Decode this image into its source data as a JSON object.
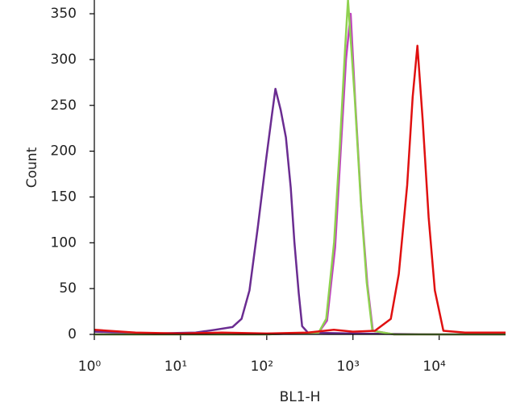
{
  "chart_data": {
    "type": "line",
    "x_label": "BL1-H",
    "y_label": "Count",
    "xscale": "log",
    "xlim": [
      1,
      58900
    ],
    "ylim": [
      0,
      365
    ],
    "xticks": [
      {
        "value": 1,
        "label": "10⁰"
      },
      {
        "value": 10,
        "label": "10¹"
      },
      {
        "value": 100,
        "label": "10²"
      },
      {
        "value": 1000,
        "label": "10³"
      },
      {
        "value": 10000,
        "label": "10⁴"
      }
    ],
    "yticks": [
      0,
      50,
      100,
      150,
      200,
      250,
      300,
      350
    ],
    "series": [
      {
        "color": "#6a2c91",
        "x": [
          1,
          5,
          15,
          25,
          40,
          51,
          63,
          79,
          98,
          115,
          126,
          145,
          167,
          190,
          209,
          235,
          257,
          300,
          1000,
          10000,
          58900
        ],
        "values": [
          3,
          1,
          2,
          5,
          8,
          17,
          48,
          118,
          190,
          240,
          268,
          245,
          215,
          160,
          101,
          45,
          9,
          2,
          1,
          0,
          0
        ]
      },
      {
        "color": "#c040c0",
        "x": [
          1,
          100,
          400,
          500,
          620,
          720,
          830,
          940,
          1060,
          1250,
          1470,
          1700,
          3000,
          58900
        ],
        "values": [
          0,
          0,
          2,
          15,
          95,
          200,
          300,
          350,
          255,
          140,
          55,
          4,
          0,
          0
        ]
      },
      {
        "color": "#8fd14f",
        "x": [
          1,
          100,
          400,
          490,
          605,
          707,
          810,
          876,
          1047,
          1235,
          1445,
          1680,
          3000,
          58900
        ],
        "values": [
          0,
          0,
          2,
          17,
          101,
          207,
          312,
          365,
          259,
          145,
          57,
          4,
          0,
          0
        ]
      },
      {
        "color": "#e01010",
        "x": [
          1,
          3,
          10,
          30,
          100,
          300,
          600,
          1000,
          1800,
          2750,
          3400,
          4260,
          4930,
          5600,
          6450,
          7540,
          8900,
          11200,
          20000,
          58900
        ],
        "values": [
          5,
          2,
          1,
          2,
          1,
          2,
          5,
          3,
          4,
          17,
          66,
          163,
          259,
          315,
          233,
          128,
          48,
          4,
          2,
          2
        ]
      }
    ]
  }
}
